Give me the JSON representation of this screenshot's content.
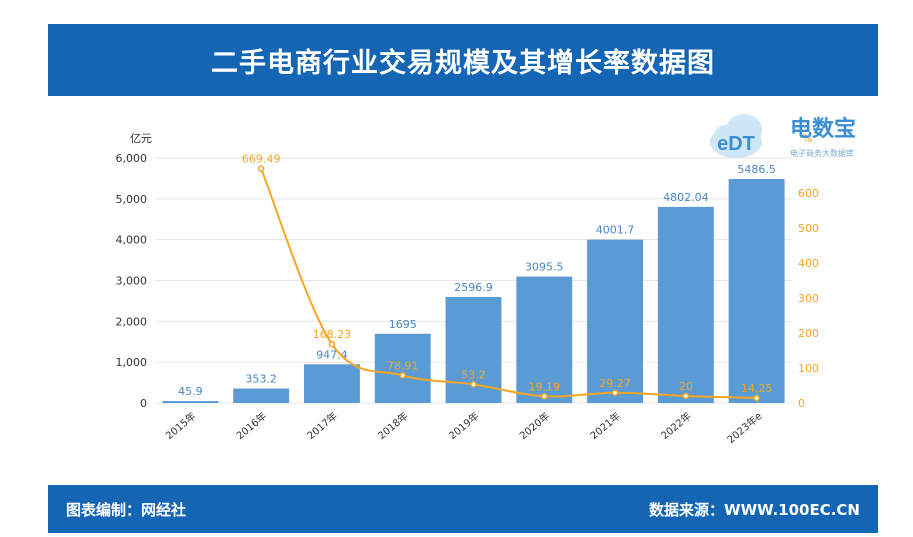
{
  "header": {
    "title": "二手电商行业交易规模及其增长率数据图"
  },
  "footer": {
    "left": "图表编制：网经社",
    "right": "数据来源：WWW.100EC.CN"
  },
  "logo": {
    "brand": "电数宝",
    "sub": "电子商务大数据库",
    "mark": "eDT"
  },
  "colors": {
    "bar": "#5b9bd5",
    "line": "#f5a623",
    "banner": "#1565b5",
    "bar_label": "#4a86c5",
    "line_label": "#f5a623"
  },
  "chart_data": {
    "type": "bar",
    "categories": [
      "2015年",
      "2016年",
      "2017年",
      "2018年",
      "2019年",
      "2020年",
      "2021年",
      "2022年",
      "2023年e"
    ],
    "series": [
      {
        "type": "bar",
        "axis": "left",
        "values": [
          45.9,
          353.2,
          947.4,
          1695,
          2596.9,
          3095.5,
          4001.7,
          4802.04,
          5486.5
        ],
        "labels": [
          "45.9",
          "353.2",
          "947.4",
          "1695",
          "2596.9",
          "3095.5",
          "4001.7",
          "4802.04",
          "5486.5"
        ]
      },
      {
        "type": "line",
        "axis": "right",
        "values": [
          null,
          669.49,
          168.23,
          78.91,
          53.2,
          19.19,
          29.27,
          20,
          14.25
        ],
        "labels": [
          "",
          "669.49",
          "168.23",
          "78.91",
          "53.2",
          "19.19",
          "29.27",
          "20",
          "14.25"
        ]
      }
    ],
    "ylabel": "亿元",
    "y2label": "%",
    "ylim": [
      0,
      6000
    ],
    "y2lim": [
      0,
      700
    ],
    "yticks": [
      "0",
      "1,000",
      "2,000",
      "3,000",
      "4,000",
      "5,000",
      "6,000"
    ],
    "y2ticks": [
      "0",
      "100",
      "200",
      "300",
      "400",
      "500",
      "600"
    ],
    "grid": true
  }
}
